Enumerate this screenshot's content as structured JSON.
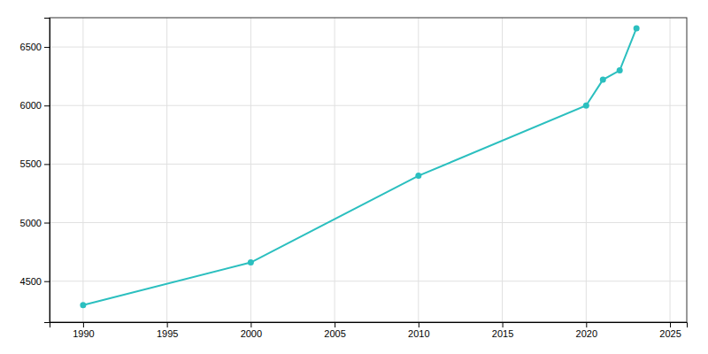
{
  "chart_data": {
    "type": "line",
    "x": [
      1990,
      2000,
      2010,
      2020,
      2021,
      2022,
      2023
    ],
    "values": [
      4295,
      4660,
      5400,
      6000,
      6220,
      6300,
      6660
    ],
    "color": "#2bbfbf",
    "marker": "circle",
    "xlim": [
      1988,
      2026
    ],
    "ylim": [
      4150,
      6750
    ],
    "xticks": [
      1990,
      1995,
      2000,
      2005,
      2010,
      2015,
      2020,
      2025
    ],
    "yticks": [
      4500,
      5000,
      5500,
      6000,
      6500
    ],
    "grid": true
  }
}
